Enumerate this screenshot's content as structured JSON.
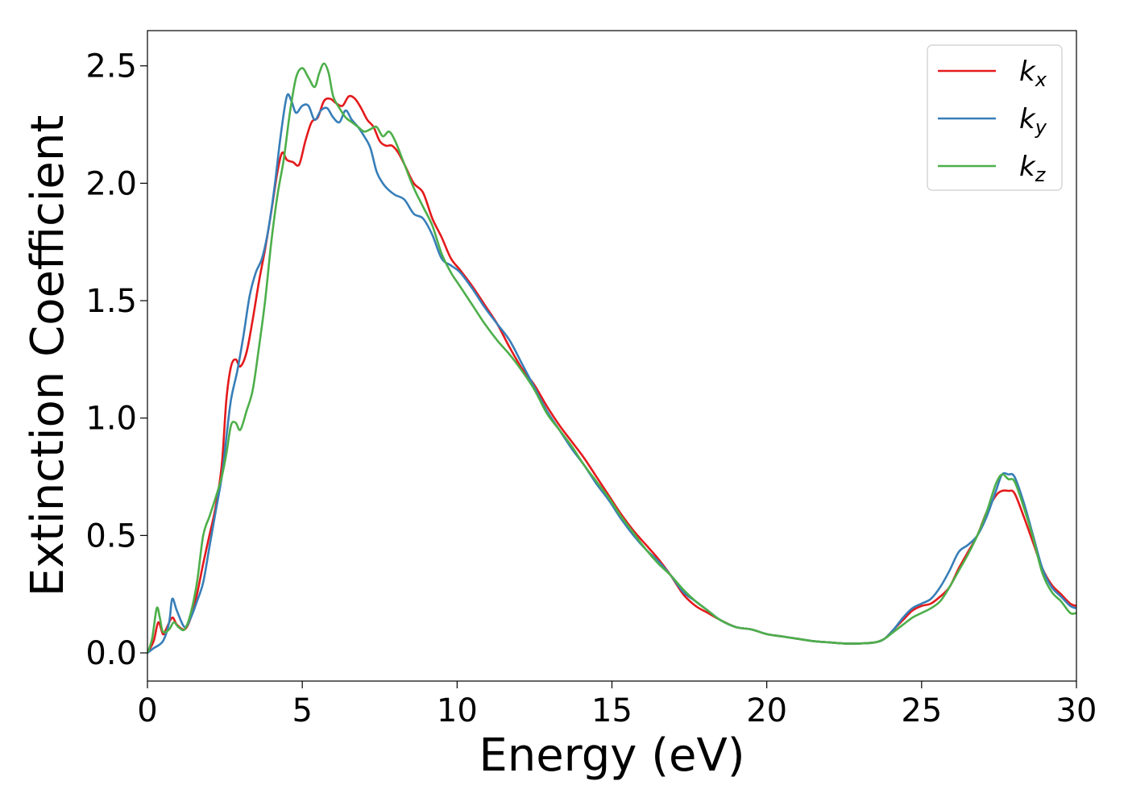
{
  "chart_data": {
    "type": "line",
    "title": "",
    "xlabel": "Energy (eV)",
    "ylabel": "Extinction Coefficient",
    "xlim": [
      0,
      30
    ],
    "ylim": [
      -0.12,
      2.65
    ],
    "x_ticks": [
      0,
      5,
      10,
      15,
      20,
      25,
      30
    ],
    "y_ticks": [
      0.0,
      0.5,
      1.0,
      1.5,
      2.0,
      2.5
    ],
    "x_tick_labels": [
      "0",
      "5",
      "10",
      "15",
      "20",
      "25",
      "30"
    ],
    "y_tick_labels": [
      "0.0",
      "0.5",
      "1.0",
      "1.5",
      "2.0",
      "2.5"
    ],
    "grid": false,
    "legend_position": "top-right",
    "series": [
      {
        "name": "k",
        "subscript": "x",
        "color": "#e41a1c",
        "points": [
          [
            0,
            0.0
          ],
          [
            0.2,
            0.05
          ],
          [
            0.35,
            0.13
          ],
          [
            0.5,
            0.08
          ],
          [
            0.6,
            0.1
          ],
          [
            0.8,
            0.15
          ],
          [
            0.95,
            0.12
          ],
          [
            1.2,
            0.1
          ],
          [
            1.4,
            0.15
          ],
          [
            1.6,
            0.25
          ],
          [
            1.8,
            0.38
          ],
          [
            2.0,
            0.5
          ],
          [
            2.2,
            0.62
          ],
          [
            2.4,
            0.8
          ],
          [
            2.55,
            1.08
          ],
          [
            2.7,
            1.22
          ],
          [
            2.85,
            1.25
          ],
          [
            3.0,
            1.22
          ],
          [
            3.2,
            1.28
          ],
          [
            3.4,
            1.42
          ],
          [
            3.6,
            1.58
          ],
          [
            3.8,
            1.72
          ],
          [
            4.0,
            1.88
          ],
          [
            4.2,
            2.05
          ],
          [
            4.35,
            2.13
          ],
          [
            4.5,
            2.1
          ],
          [
            4.7,
            2.09
          ],
          [
            4.9,
            2.08
          ],
          [
            5.1,
            2.18
          ],
          [
            5.3,
            2.26
          ],
          [
            5.5,
            2.28
          ],
          [
            5.7,
            2.35
          ],
          [
            5.9,
            2.36
          ],
          [
            6.1,
            2.34
          ],
          [
            6.3,
            2.33
          ],
          [
            6.5,
            2.37
          ],
          [
            6.7,
            2.36
          ],
          [
            6.9,
            2.32
          ],
          [
            7.1,
            2.27
          ],
          [
            7.3,
            2.24
          ],
          [
            7.5,
            2.18
          ],
          [
            7.7,
            2.16
          ],
          [
            7.9,
            2.16
          ],
          [
            8.1,
            2.13
          ],
          [
            8.3,
            2.08
          ],
          [
            8.6,
            2.0
          ],
          [
            8.9,
            1.96
          ],
          [
            9.2,
            1.85
          ],
          [
            9.5,
            1.77
          ],
          [
            9.8,
            1.68
          ],
          [
            10.1,
            1.63
          ],
          [
            10.5,
            1.56
          ],
          [
            10.9,
            1.48
          ],
          [
            11.3,
            1.4
          ],
          [
            11.7,
            1.3
          ],
          [
            12.1,
            1.21
          ],
          [
            12.5,
            1.14
          ],
          [
            12.9,
            1.05
          ],
          [
            13.3,
            0.97
          ],
          [
            13.7,
            0.9
          ],
          [
            14.1,
            0.83
          ],
          [
            14.5,
            0.75
          ],
          [
            14.9,
            0.67
          ],
          [
            15.3,
            0.59
          ],
          [
            15.7,
            0.52
          ],
          [
            16.1,
            0.46
          ],
          [
            16.5,
            0.4
          ],
          [
            16.9,
            0.33
          ],
          [
            17.3,
            0.25
          ],
          [
            17.7,
            0.2
          ],
          [
            18.1,
            0.17
          ],
          [
            18.5,
            0.14
          ],
          [
            19.0,
            0.11
          ],
          [
            19.5,
            0.1
          ],
          [
            20.0,
            0.08
          ],
          [
            20.5,
            0.07
          ],
          [
            21.0,
            0.06
          ],
          [
            21.5,
            0.05
          ],
          [
            22.0,
            0.045
          ],
          [
            22.5,
            0.04
          ],
          [
            23.0,
            0.04
          ],
          [
            23.5,
            0.045
          ],
          [
            23.8,
            0.06
          ],
          [
            24.1,
            0.1
          ],
          [
            24.4,
            0.14
          ],
          [
            24.7,
            0.18
          ],
          [
            25.0,
            0.2
          ],
          [
            25.3,
            0.21
          ],
          [
            25.6,
            0.24
          ],
          [
            25.9,
            0.28
          ],
          [
            26.2,
            0.36
          ],
          [
            26.5,
            0.43
          ],
          [
            26.8,
            0.5
          ],
          [
            27.1,
            0.6
          ],
          [
            27.4,
            0.67
          ],
          [
            27.6,
            0.69
          ],
          [
            27.8,
            0.69
          ],
          [
            28.0,
            0.68
          ],
          [
            28.3,
            0.58
          ],
          [
            28.6,
            0.47
          ],
          [
            28.9,
            0.36
          ],
          [
            29.2,
            0.29
          ],
          [
            29.5,
            0.25
          ],
          [
            29.8,
            0.21
          ],
          [
            30.0,
            0.2
          ]
        ]
      },
      {
        "name": "k",
        "subscript": "y",
        "color": "#377eb8",
        "points": [
          [
            0,
            0.0
          ],
          [
            0.2,
            0.02
          ],
          [
            0.5,
            0.05
          ],
          [
            0.7,
            0.13
          ],
          [
            0.8,
            0.23
          ],
          [
            0.95,
            0.18
          ],
          [
            1.2,
            0.11
          ],
          [
            1.4,
            0.15
          ],
          [
            1.6,
            0.22
          ],
          [
            1.8,
            0.3
          ],
          [
            2.0,
            0.45
          ],
          [
            2.2,
            0.6
          ],
          [
            2.4,
            0.75
          ],
          [
            2.55,
            0.92
          ],
          [
            2.7,
            1.08
          ],
          [
            2.9,
            1.2
          ],
          [
            3.1,
            1.35
          ],
          [
            3.3,
            1.52
          ],
          [
            3.5,
            1.62
          ],
          [
            3.7,
            1.68
          ],
          [
            3.9,
            1.8
          ],
          [
            4.1,
            1.98
          ],
          [
            4.3,
            2.2
          ],
          [
            4.5,
            2.37
          ],
          [
            4.65,
            2.35
          ],
          [
            4.8,
            2.3
          ],
          [
            5.0,
            2.33
          ],
          [
            5.2,
            2.33
          ],
          [
            5.4,
            2.27
          ],
          [
            5.6,
            2.31
          ],
          [
            5.8,
            2.32
          ],
          [
            6.0,
            2.28
          ],
          [
            6.2,
            2.26
          ],
          [
            6.4,
            2.31
          ],
          [
            6.6,
            2.27
          ],
          [
            6.8,
            2.24
          ],
          [
            7.0,
            2.2
          ],
          [
            7.2,
            2.15
          ],
          [
            7.4,
            2.05
          ],
          [
            7.6,
            2.0
          ],
          [
            7.8,
            1.97
          ],
          [
            8.0,
            1.95
          ],
          [
            8.3,
            1.93
          ],
          [
            8.6,
            1.87
          ],
          [
            8.9,
            1.85
          ],
          [
            9.2,
            1.78
          ],
          [
            9.5,
            1.68
          ],
          [
            9.8,
            1.65
          ],
          [
            10.1,
            1.62
          ],
          [
            10.5,
            1.55
          ],
          [
            10.9,
            1.47
          ],
          [
            11.3,
            1.4
          ],
          [
            11.7,
            1.33
          ],
          [
            12.1,
            1.23
          ],
          [
            12.5,
            1.13
          ],
          [
            12.9,
            1.03
          ],
          [
            13.3,
            0.95
          ],
          [
            13.7,
            0.87
          ],
          [
            14.1,
            0.8
          ],
          [
            14.5,
            0.72
          ],
          [
            14.9,
            0.65
          ],
          [
            15.3,
            0.57
          ],
          [
            15.7,
            0.5
          ],
          [
            16.1,
            0.44
          ],
          [
            16.5,
            0.39
          ],
          [
            16.9,
            0.33
          ],
          [
            17.3,
            0.26
          ],
          [
            17.7,
            0.22
          ],
          [
            18.1,
            0.18
          ],
          [
            18.5,
            0.14
          ],
          [
            19.0,
            0.11
          ],
          [
            19.5,
            0.1
          ],
          [
            20.0,
            0.08
          ],
          [
            20.5,
            0.07
          ],
          [
            21.0,
            0.06
          ],
          [
            21.5,
            0.05
          ],
          [
            22.0,
            0.045
          ],
          [
            22.5,
            0.04
          ],
          [
            23.0,
            0.04
          ],
          [
            23.5,
            0.045
          ],
          [
            23.8,
            0.06
          ],
          [
            24.1,
            0.1
          ],
          [
            24.4,
            0.15
          ],
          [
            24.7,
            0.19
          ],
          [
            25.0,
            0.21
          ],
          [
            25.3,
            0.23
          ],
          [
            25.6,
            0.28
          ],
          [
            25.9,
            0.35
          ],
          [
            26.2,
            0.43
          ],
          [
            26.5,
            0.46
          ],
          [
            26.8,
            0.5
          ],
          [
            27.1,
            0.58
          ],
          [
            27.4,
            0.69
          ],
          [
            27.6,
            0.76
          ],
          [
            27.8,
            0.76
          ],
          [
            28.0,
            0.75
          ],
          [
            28.3,
            0.64
          ],
          [
            28.6,
            0.5
          ],
          [
            28.9,
            0.36
          ],
          [
            29.2,
            0.28
          ],
          [
            29.5,
            0.24
          ],
          [
            29.8,
            0.2
          ],
          [
            30.0,
            0.19
          ]
        ]
      },
      {
        "name": "k",
        "subscript": "z",
        "color": "#4daf4a",
        "points": [
          [
            0,
            0.0
          ],
          [
            0.15,
            0.06
          ],
          [
            0.3,
            0.19
          ],
          [
            0.4,
            0.15
          ],
          [
            0.5,
            0.09
          ],
          [
            0.7,
            0.1
          ],
          [
            0.85,
            0.13
          ],
          [
            1.0,
            0.11
          ],
          [
            1.2,
            0.1
          ],
          [
            1.4,
            0.17
          ],
          [
            1.6,
            0.3
          ],
          [
            1.8,
            0.5
          ],
          [
            2.0,
            0.58
          ],
          [
            2.2,
            0.66
          ],
          [
            2.4,
            0.75
          ],
          [
            2.55,
            0.85
          ],
          [
            2.7,
            0.97
          ],
          [
            2.85,
            0.98
          ],
          [
            3.0,
            0.95
          ],
          [
            3.2,
            1.03
          ],
          [
            3.4,
            1.12
          ],
          [
            3.6,
            1.3
          ],
          [
            3.8,
            1.5
          ],
          [
            4.0,
            1.75
          ],
          [
            4.2,
            1.95
          ],
          [
            4.4,
            2.1
          ],
          [
            4.6,
            2.3
          ],
          [
            4.8,
            2.45
          ],
          [
            5.0,
            2.49
          ],
          [
            5.2,
            2.45
          ],
          [
            5.4,
            2.41
          ],
          [
            5.55,
            2.47
          ],
          [
            5.7,
            2.51
          ],
          [
            5.85,
            2.47
          ],
          [
            6.0,
            2.37
          ],
          [
            6.2,
            2.32
          ],
          [
            6.4,
            2.28
          ],
          [
            6.6,
            2.26
          ],
          [
            6.8,
            2.24
          ],
          [
            7.0,
            2.22
          ],
          [
            7.2,
            2.23
          ],
          [
            7.4,
            2.24
          ],
          [
            7.6,
            2.2
          ],
          [
            7.8,
            2.22
          ],
          [
            8.0,
            2.18
          ],
          [
            8.3,
            2.08
          ],
          [
            8.6,
            1.98
          ],
          [
            8.9,
            1.9
          ],
          [
            9.2,
            1.82
          ],
          [
            9.5,
            1.7
          ],
          [
            9.8,
            1.62
          ],
          [
            10.1,
            1.56
          ],
          [
            10.5,
            1.48
          ],
          [
            10.9,
            1.4
          ],
          [
            11.3,
            1.33
          ],
          [
            11.7,
            1.27
          ],
          [
            12.1,
            1.2
          ],
          [
            12.5,
            1.12
          ],
          [
            12.9,
            1.02
          ],
          [
            13.3,
            0.95
          ],
          [
            13.7,
            0.88
          ],
          [
            14.1,
            0.8
          ],
          [
            14.5,
            0.73
          ],
          [
            14.9,
            0.66
          ],
          [
            15.3,
            0.58
          ],
          [
            15.7,
            0.51
          ],
          [
            16.1,
            0.44
          ],
          [
            16.5,
            0.38
          ],
          [
            16.9,
            0.33
          ],
          [
            17.3,
            0.27
          ],
          [
            17.7,
            0.22
          ],
          [
            18.1,
            0.18
          ],
          [
            18.5,
            0.14
          ],
          [
            19.0,
            0.11
          ],
          [
            19.5,
            0.1
          ],
          [
            20.0,
            0.08
          ],
          [
            20.5,
            0.07
          ],
          [
            21.0,
            0.06
          ],
          [
            21.5,
            0.05
          ],
          [
            22.0,
            0.045
          ],
          [
            22.5,
            0.04
          ],
          [
            23.0,
            0.04
          ],
          [
            23.5,
            0.045
          ],
          [
            23.8,
            0.06
          ],
          [
            24.1,
            0.09
          ],
          [
            24.4,
            0.12
          ],
          [
            24.7,
            0.15
          ],
          [
            25.0,
            0.17
          ],
          [
            25.3,
            0.19
          ],
          [
            25.6,
            0.22
          ],
          [
            25.9,
            0.28
          ],
          [
            26.2,
            0.35
          ],
          [
            26.5,
            0.42
          ],
          [
            26.8,
            0.5
          ],
          [
            27.1,
            0.6
          ],
          [
            27.4,
            0.72
          ],
          [
            27.6,
            0.76
          ],
          [
            27.8,
            0.74
          ],
          [
            28.0,
            0.73
          ],
          [
            28.3,
            0.62
          ],
          [
            28.6,
            0.49
          ],
          [
            28.9,
            0.34
          ],
          [
            29.2,
            0.26
          ],
          [
            29.5,
            0.22
          ],
          [
            29.8,
            0.17
          ],
          [
            30.0,
            0.17
          ]
        ]
      }
    ]
  }
}
